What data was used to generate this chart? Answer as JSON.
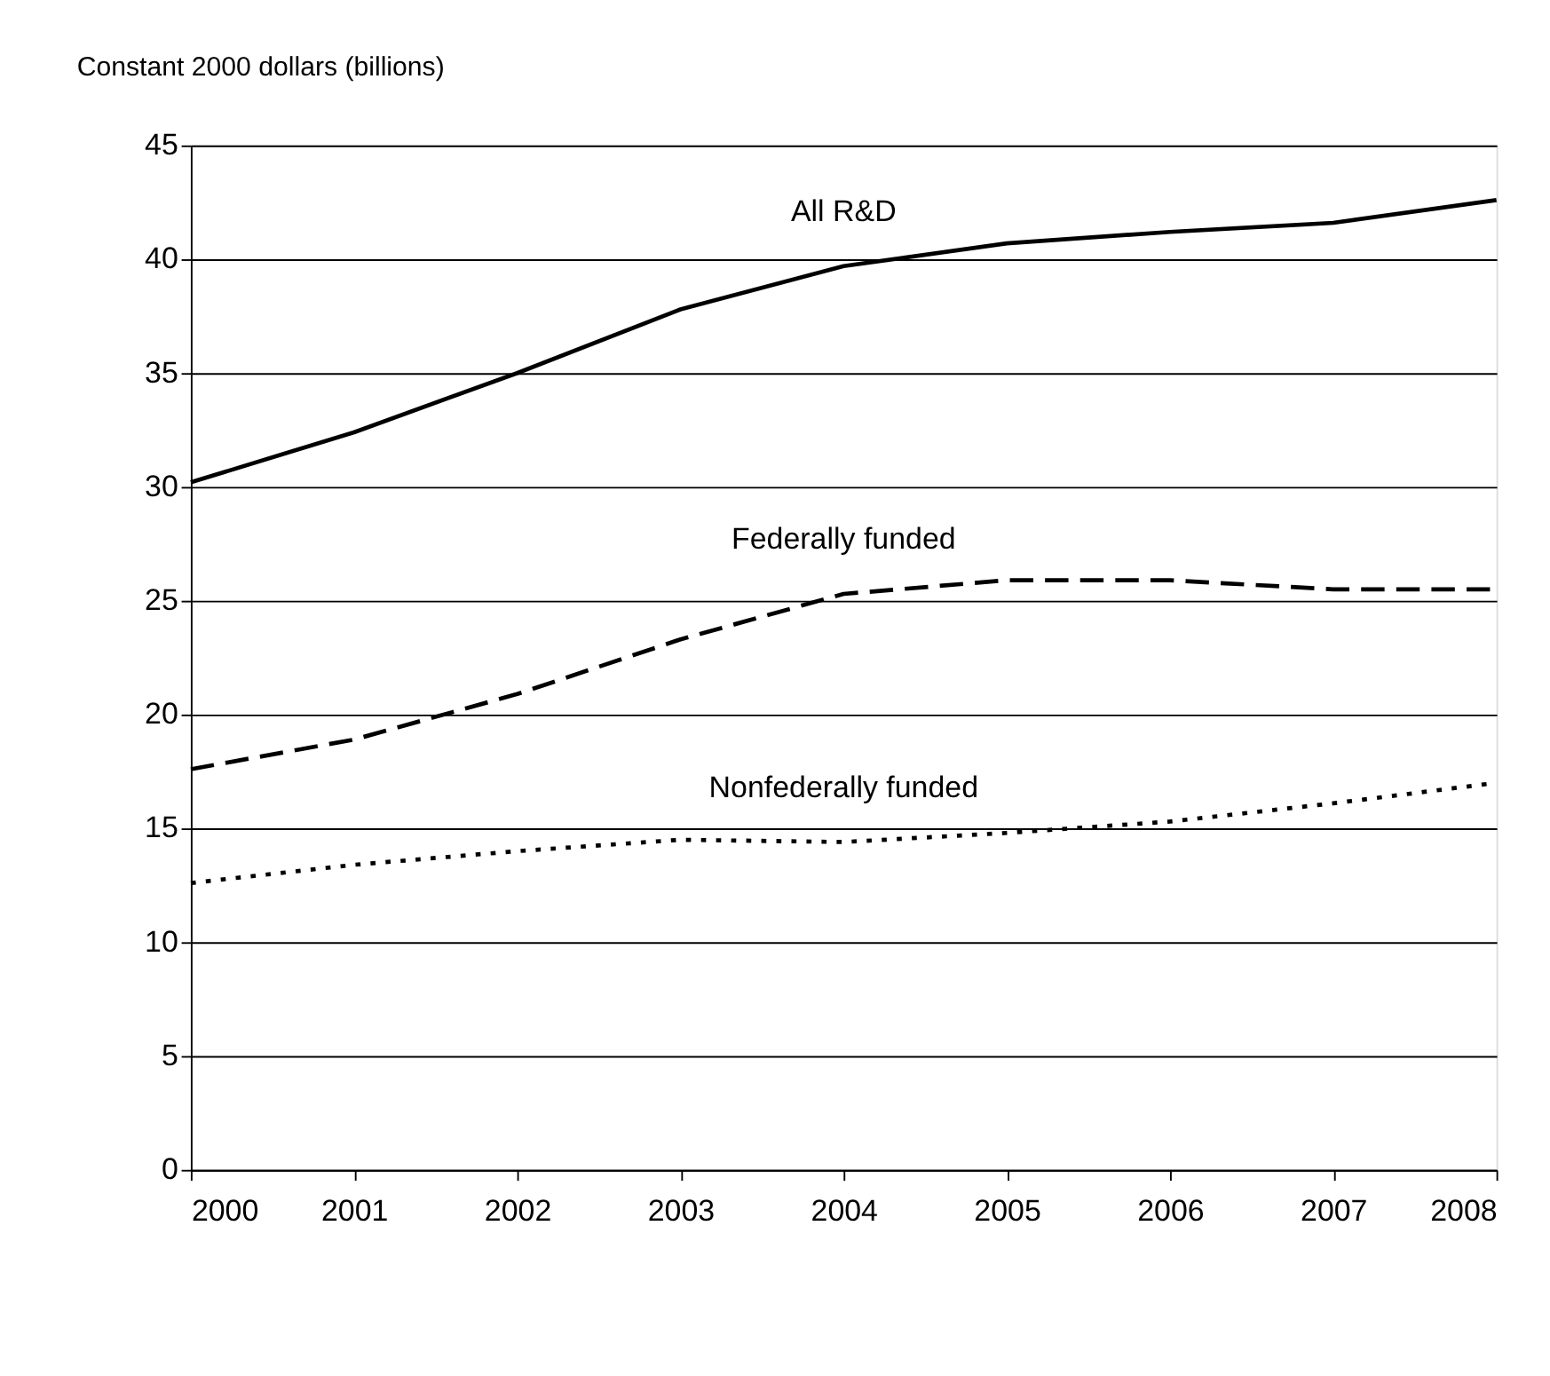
{
  "chart_data": {
    "type": "line",
    "ylabel": "Constant 2000 dollars (billions)",
    "x": [
      2000,
      2001,
      2002,
      2003,
      2004,
      2005,
      2006,
      2007,
      2008
    ],
    "series": [
      {
        "name": "All R&D",
        "color": "#000000",
        "line_style": "solid",
        "values": [
          30.2,
          32.4,
          35.0,
          37.8,
          39.7,
          40.7,
          41.2,
          41.6,
          42.6
        ]
      },
      {
        "name": "Federally funded",
        "color": "#000000",
        "line_style": "dashed",
        "values": [
          17.6,
          18.9,
          20.9,
          23.3,
          25.3,
          25.9,
          25.9,
          25.5,
          25.5
        ]
      },
      {
        "name": "Nonfederally funded",
        "color": "#000000",
        "line_style": "dotted",
        "values": [
          12.6,
          13.4,
          14.0,
          14.5,
          14.4,
          14.8,
          15.3,
          16.1,
          17.0
        ]
      }
    ],
    "xlim": [
      2000,
      2008
    ],
    "xticks": [
      2000,
      2001,
      2002,
      2003,
      2004,
      2005,
      2006,
      2007,
      2008
    ],
    "ylim": [
      0,
      45
    ],
    "yticks": [
      0,
      5,
      10,
      15,
      20,
      25,
      30,
      35,
      40,
      45
    ],
    "grid": "y",
    "marker": "none"
  }
}
